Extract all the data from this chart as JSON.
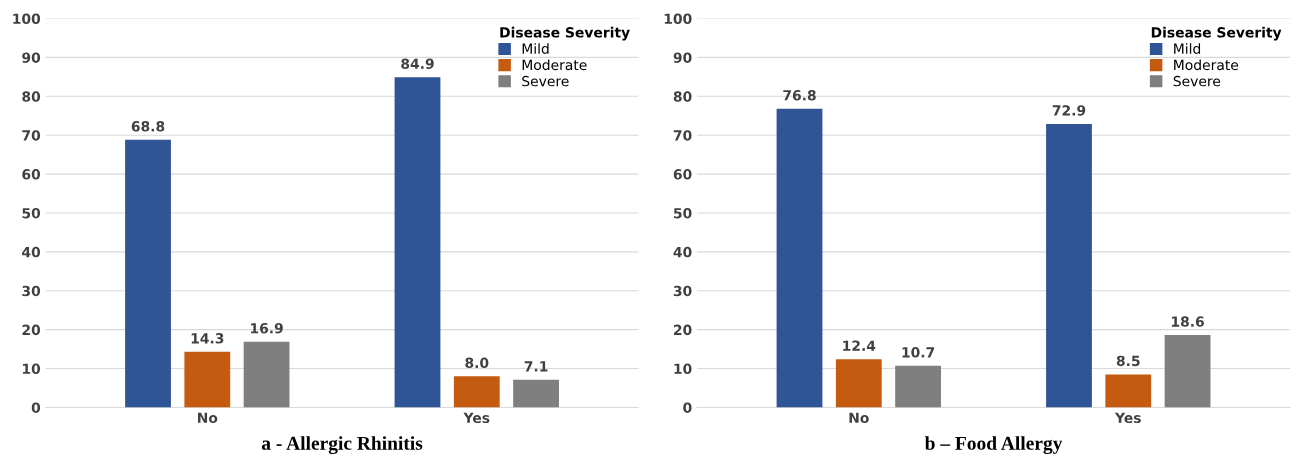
{
  "chart_data": [
    {
      "type": "bar",
      "title": "a - Allergic Rhinitis",
      "legend_title": "Disease Severity",
      "categories": [
        "No",
        "Yes"
      ],
      "series": [
        {
          "name": "Mild",
          "color": "#2f5597",
          "values": [
            68.8,
            84.9
          ],
          "value_labels": [
            "68.8",
            "84.9"
          ]
        },
        {
          "name": "Moderate",
          "color": "#c55a11",
          "values": [
            14.3,
            8.0
          ],
          "value_labels": [
            "14.3",
            "8.0"
          ]
        },
        {
          "name": "Severe",
          "color": "#7f7f7f",
          "values": [
            16.9,
            7.1
          ],
          "value_labels": [
            "16.9",
            "7.1"
          ]
        }
      ],
      "ylim": [
        0,
        100
      ],
      "yticks": [
        0,
        10,
        20,
        30,
        40,
        50,
        60,
        70,
        80,
        90,
        100
      ],
      "grid": "y",
      "legend": "top right"
    },
    {
      "type": "bar",
      "title": "b – Food Allergy",
      "legend_title": "Disease Severity",
      "categories": [
        "No",
        "Yes"
      ],
      "series": [
        {
          "name": "Mild",
          "color": "#2f5597",
          "values": [
            76.8,
            72.9
          ],
          "value_labels": [
            "76.8",
            "72.9"
          ]
        },
        {
          "name": "Moderate",
          "color": "#c55a11",
          "values": [
            12.4,
            8.5
          ],
          "value_labels": [
            "12.4",
            "8.5"
          ]
        },
        {
          "name": "Severe",
          "color": "#7f7f7f",
          "values": [
            10.7,
            18.6
          ],
          "value_labels": [
            "10.7",
            "18.6"
          ]
        }
      ],
      "ylim": [
        0,
        100
      ],
      "yticks": [
        0,
        10,
        20,
        30,
        40,
        50,
        60,
        70,
        80,
        90,
        100
      ],
      "grid": "y",
      "legend": "top right"
    }
  ]
}
